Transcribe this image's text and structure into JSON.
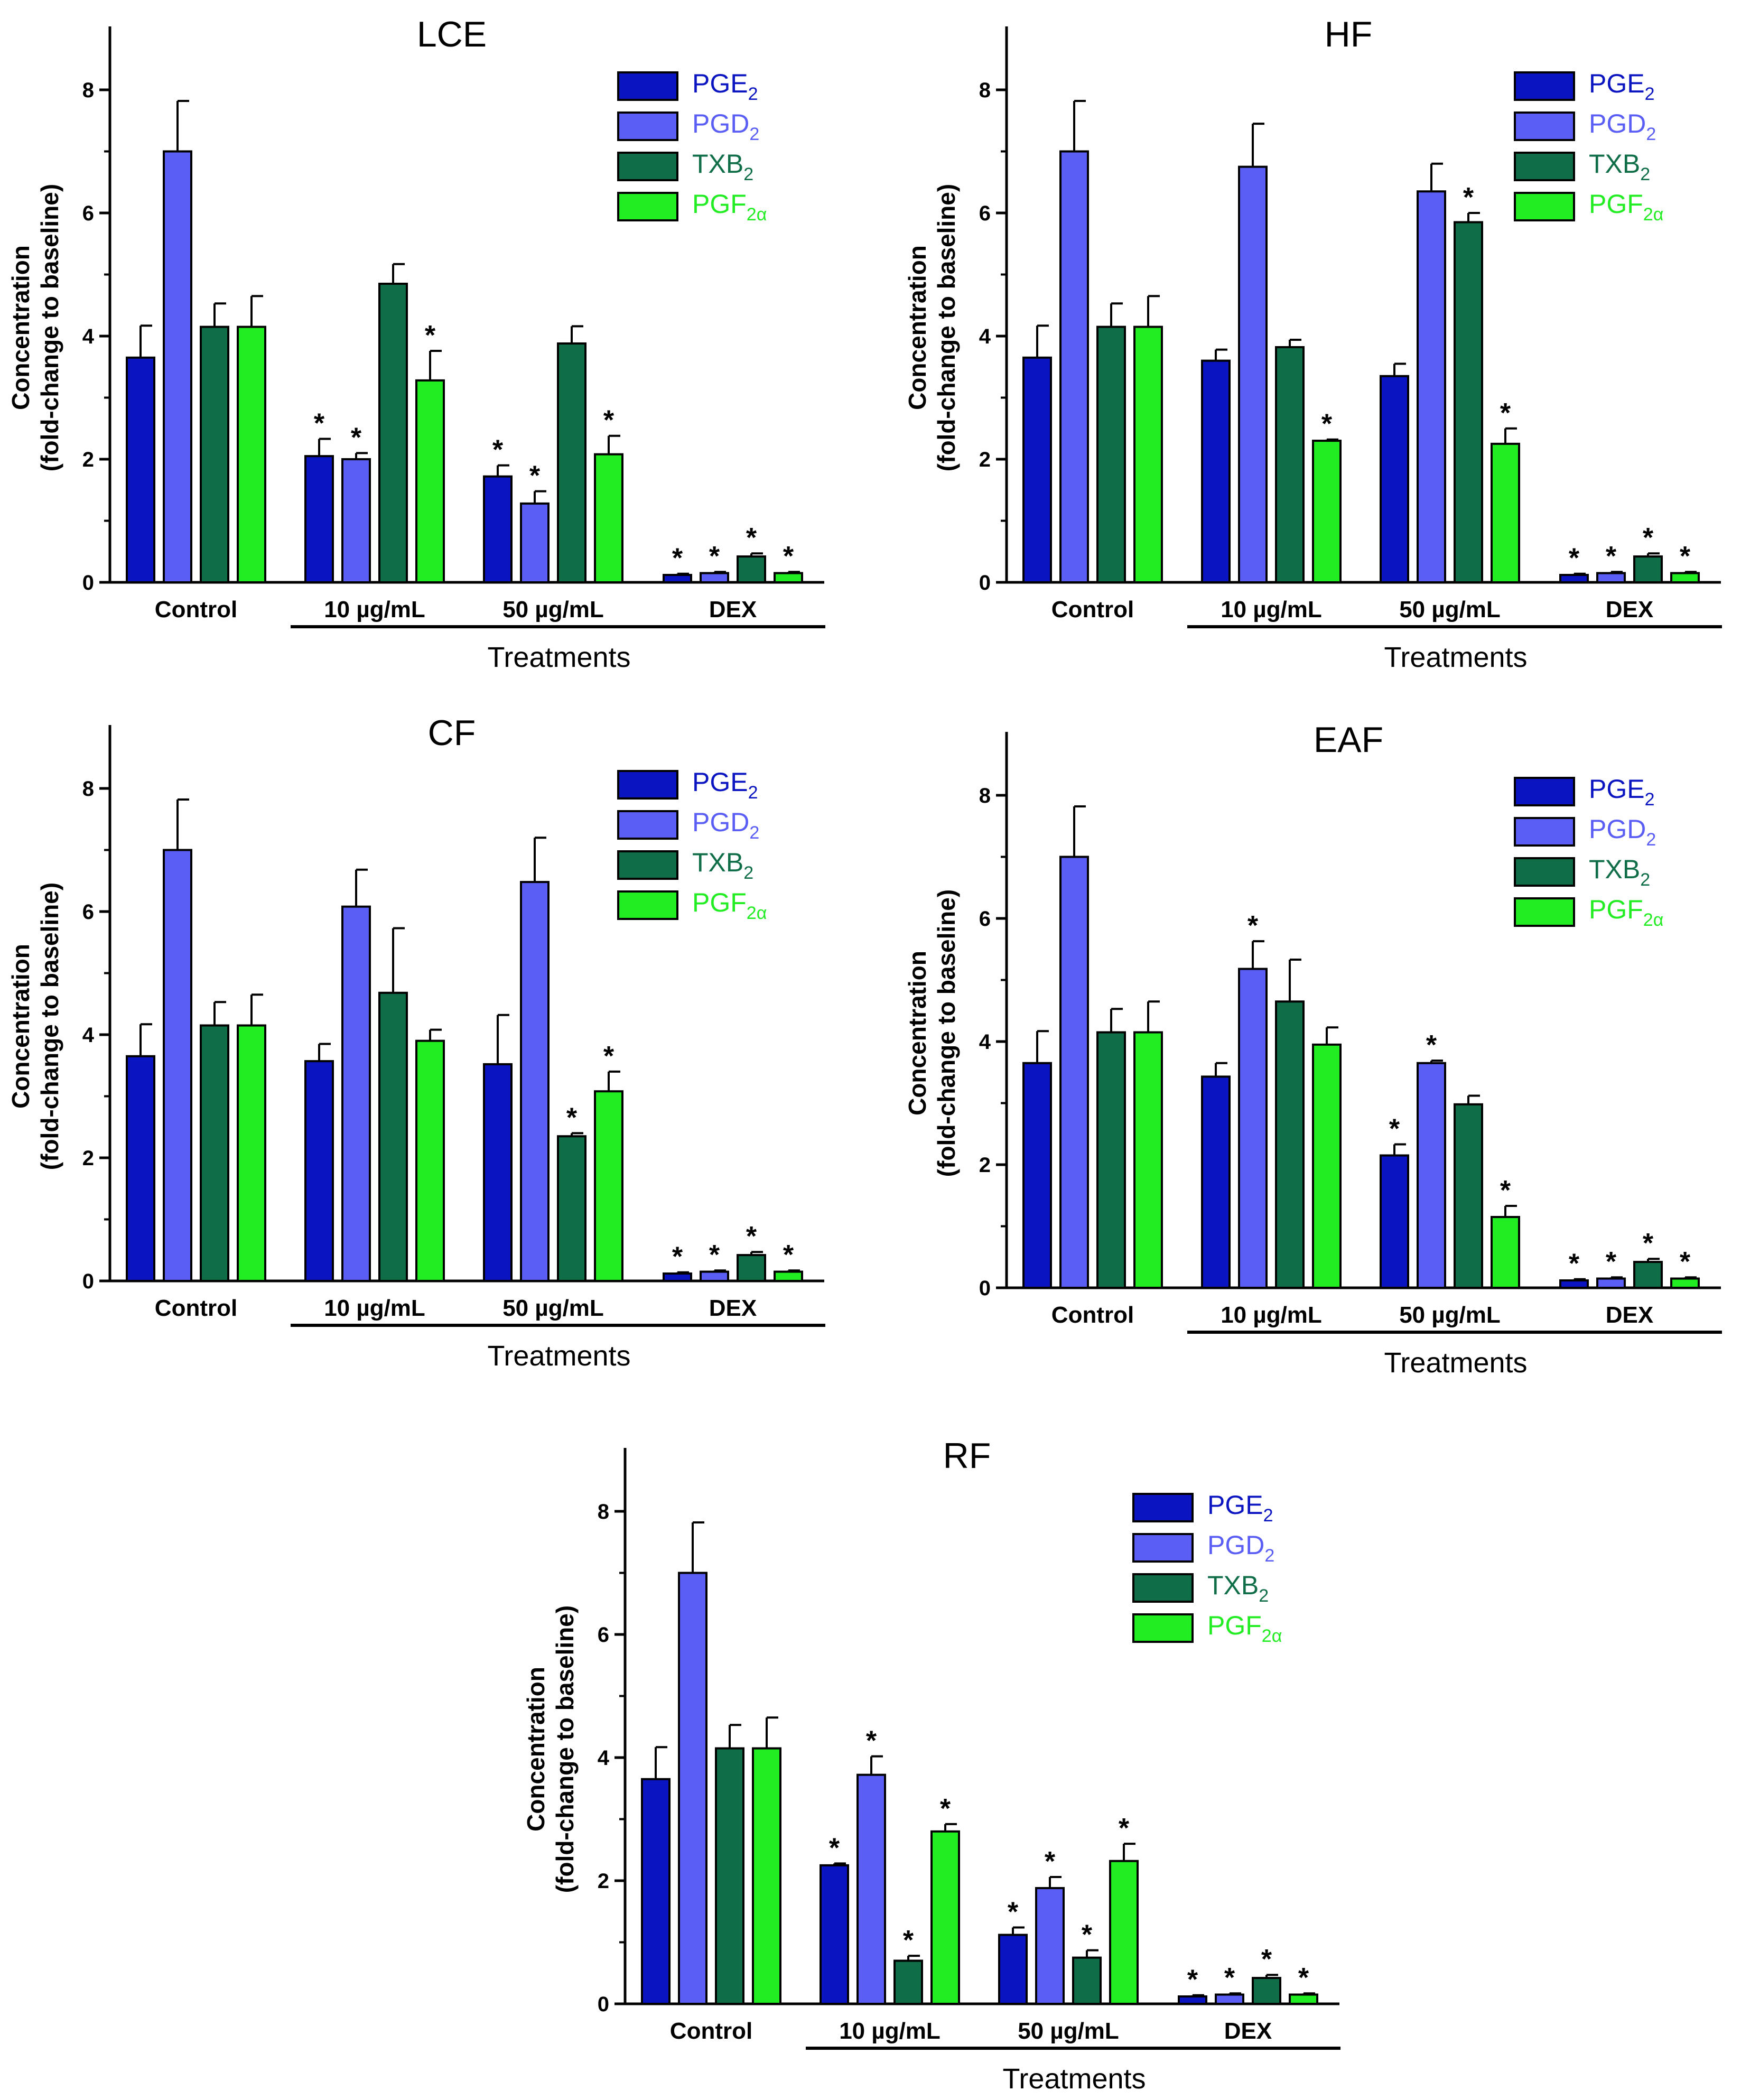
{
  "figure": {
    "colors": {
      "PGE2": "#0a14c0",
      "PGD2": "#5a5ef5",
      "TXB2": "#0f6e48",
      "PGF2a": "#22ec22"
    },
    "series_legend": [
      {
        "key": "PGE2",
        "base": "PGE",
        "sub": "2"
      },
      {
        "key": "PGD2",
        "base": "PGD",
        "sub": "2"
      },
      {
        "key": "TXB2",
        "base": "TXB",
        "sub": "2"
      },
      {
        "key": "PGF2a",
        "base": "PGF",
        "sub": "2α"
      }
    ]
  },
  "chart_data": [
    {
      "type": "bar",
      "title": "LCE",
      "ylabel_line1": "Concentration",
      "ylabel_line2": "(fold-change to baseline)",
      "xlabel": "Treatments",
      "ylim": [
        0,
        9
      ],
      "yticks": [
        "0",
        "2",
        "4",
        "6",
        "8"
      ],
      "categories": [
        "Control",
        "10 µg/mL",
        "50 µg/mL",
        "DEX"
      ],
      "series": [
        {
          "name": "PGE2",
          "values": [
            3.65,
            2.05,
            1.72,
            0.12
          ],
          "errors": [
            0.52,
            0.28,
            0.18,
            0.02
          ],
          "sig": [
            false,
            true,
            true,
            true
          ]
        },
        {
          "name": "PGD2",
          "values": [
            7.0,
            2.0,
            1.28,
            0.15
          ],
          "errors": [
            0.82,
            0.1,
            0.2,
            0.02
          ],
          "sig": [
            false,
            true,
            true,
            true
          ]
        },
        {
          "name": "TXB2",
          "values": [
            4.15,
            4.85,
            3.88,
            0.42
          ],
          "errors": [
            0.38,
            0.32,
            0.28,
            0.05
          ],
          "sig": [
            false,
            false,
            false,
            true
          ]
        },
        {
          "name": "PGF2a",
          "values": [
            4.15,
            3.28,
            2.08,
            0.15
          ],
          "errors": [
            0.5,
            0.48,
            0.3,
            0.02
          ],
          "sig": [
            false,
            true,
            true,
            true
          ]
        }
      ]
    },
    {
      "type": "bar",
      "title": "HF",
      "ylabel_line1": "Concentration",
      "ylabel_line2": "(fold-change to baseline)",
      "xlabel": "Treatments",
      "ylim": [
        0,
        9
      ],
      "yticks": [
        "0",
        "2",
        "4",
        "6",
        "8"
      ],
      "categories": [
        "Control",
        "10 µg/mL",
        "50 µg/mL",
        "DEX"
      ],
      "series": [
        {
          "name": "PGE2",
          "values": [
            3.65,
            3.6,
            3.35,
            0.12
          ],
          "errors": [
            0.52,
            0.18,
            0.2,
            0.02
          ],
          "sig": [
            false,
            false,
            false,
            true
          ]
        },
        {
          "name": "PGD2",
          "values": [
            7.0,
            6.75,
            6.35,
            0.15
          ],
          "errors": [
            0.82,
            0.7,
            0.45,
            0.02
          ],
          "sig": [
            false,
            false,
            false,
            true
          ]
        },
        {
          "name": "TXB2",
          "values": [
            4.15,
            3.82,
            5.85,
            0.42
          ],
          "errors": [
            0.38,
            0.12,
            0.15,
            0.05
          ],
          "sig": [
            false,
            false,
            true,
            true
          ]
        },
        {
          "name": "PGF2a",
          "values": [
            4.15,
            2.3,
            2.25,
            0.15
          ],
          "errors": [
            0.5,
            0.02,
            0.25,
            0.02
          ],
          "sig": [
            false,
            true,
            true,
            true
          ]
        }
      ]
    },
    {
      "type": "bar",
      "title": "CF",
      "ylabel_line1": "Concentration",
      "ylabel_line2": "(fold-change to baseline)",
      "xlabel": "Treatments",
      "ylim": [
        0,
        9
      ],
      "yticks": [
        "0",
        "2",
        "4",
        "6",
        "8"
      ],
      "categories": [
        "Control",
        "10 µg/mL",
        "50 µg/mL",
        "DEX"
      ],
      "series": [
        {
          "name": "PGE2",
          "values": [
            3.65,
            3.57,
            3.52,
            0.12
          ],
          "errors": [
            0.52,
            0.28,
            0.8,
            0.02
          ],
          "sig": [
            false,
            false,
            false,
            true
          ]
        },
        {
          "name": "PGD2",
          "values": [
            7.0,
            6.08,
            6.48,
            0.15
          ],
          "errors": [
            0.82,
            0.6,
            0.72,
            0.02
          ],
          "sig": [
            false,
            false,
            false,
            true
          ]
        },
        {
          "name": "TXB2",
          "values": [
            4.15,
            4.68,
            2.35,
            0.42
          ],
          "errors": [
            0.38,
            1.05,
            0.05,
            0.05
          ],
          "sig": [
            false,
            false,
            true,
            true
          ]
        },
        {
          "name": "PGF2a",
          "values": [
            4.15,
            3.9,
            3.08,
            0.15
          ],
          "errors": [
            0.5,
            0.18,
            0.32,
            0.02
          ],
          "sig": [
            false,
            false,
            true,
            true
          ]
        }
      ]
    },
    {
      "type": "bar",
      "title": "EAF",
      "ylabel_line1": "Concentration",
      "ylabel_line2": "(fold-change to baseline)",
      "xlabel": "Treatments",
      "ylim": [
        0,
        9
      ],
      "yticks": [
        "0",
        "2",
        "4",
        "6",
        "8"
      ],
      "categories": [
        "Control",
        "10 µg/mL",
        "50 µg/mL",
        "DEX"
      ],
      "series": [
        {
          "name": "PGE2",
          "values": [
            3.65,
            3.43,
            2.15,
            0.12
          ],
          "errors": [
            0.52,
            0.22,
            0.18,
            0.02
          ],
          "sig": [
            false,
            false,
            true,
            true
          ]
        },
        {
          "name": "PGD2",
          "values": [
            7.0,
            5.18,
            3.65,
            0.15
          ],
          "errors": [
            0.82,
            0.45,
            0.04,
            0.02
          ],
          "sig": [
            false,
            true,
            true,
            true
          ]
        },
        {
          "name": "TXB2",
          "values": [
            4.15,
            4.65,
            2.98,
            0.42
          ],
          "errors": [
            0.38,
            0.68,
            0.14,
            0.05
          ],
          "sig": [
            false,
            false,
            false,
            true
          ]
        },
        {
          "name": "PGF2a",
          "values": [
            4.15,
            3.95,
            1.15,
            0.15
          ],
          "errors": [
            0.5,
            0.28,
            0.18,
            0.02
          ],
          "sig": [
            false,
            false,
            true,
            true
          ]
        }
      ]
    },
    {
      "type": "bar",
      "title": "RF",
      "ylabel_line1": "Concentration",
      "ylabel_line2": "(fold-change to baseline)",
      "xlabel": "Treatments",
      "ylim": [
        0,
        9
      ],
      "yticks": [
        "0",
        "2",
        "4",
        "6",
        "8"
      ],
      "categories": [
        "Control",
        "10 µg/mL",
        "50 µg/mL",
        "DEX"
      ],
      "series": [
        {
          "name": "PGE2",
          "values": [
            3.65,
            2.25,
            1.12,
            0.12
          ],
          "errors": [
            0.52,
            0.03,
            0.12,
            0.02
          ],
          "sig": [
            false,
            true,
            true,
            true
          ]
        },
        {
          "name": "PGD2",
          "values": [
            7.0,
            3.72,
            1.88,
            0.15
          ],
          "errors": [
            0.82,
            0.3,
            0.18,
            0.02
          ],
          "sig": [
            false,
            true,
            true,
            true
          ]
        },
        {
          "name": "TXB2",
          "values": [
            4.15,
            0.7,
            0.75,
            0.42
          ],
          "errors": [
            0.38,
            0.08,
            0.12,
            0.05
          ],
          "sig": [
            false,
            true,
            true,
            true
          ]
        },
        {
          "name": "PGF2a",
          "values": [
            4.15,
            2.8,
            2.32,
            0.15
          ],
          "errors": [
            0.5,
            0.12,
            0.28,
            0.02
          ],
          "sig": [
            false,
            true,
            true,
            true
          ]
        }
      ]
    }
  ]
}
